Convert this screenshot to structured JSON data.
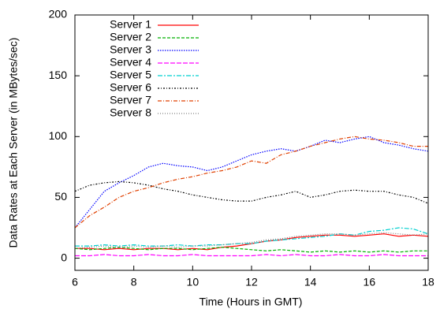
{
  "chart_data": {
    "type": "line",
    "x_label": "Time (Hours in GMT)",
    "y_label": "Data Rates at Each Server (in MBytes/sec)",
    "xlim": [
      6,
      18
    ],
    "xticks": [
      6,
      8,
      10,
      12,
      14,
      16,
      18
    ],
    "ylim": [
      -10,
      200
    ],
    "yticks": [
      0,
      50,
      100,
      150,
      200
    ],
    "grid": false,
    "legend": "top-left",
    "x": [
      6,
      6.5,
      7,
      7.5,
      8,
      8.5,
      9,
      9.5,
      10,
      10.5,
      11,
      11.5,
      12,
      12.5,
      13,
      13.5,
      14,
      14.5,
      15,
      15.5,
      16,
      16.5,
      17,
      17.5,
      18
    ],
    "series": [
      {
        "name": "Server 1",
        "color": "#ff0000",
        "dash": "none",
        "values": [
          8,
          8,
          7,
          8,
          7,
          8,
          8,
          7,
          8,
          7,
          9,
          10,
          12,
          14,
          15,
          17,
          18,
          19,
          19,
          18,
          19,
          20,
          18,
          19,
          18
        ]
      },
      {
        "name": "Server 2",
        "color": "#00b000",
        "dash": "4 2",
        "values": [
          8,
          7,
          8,
          9,
          8,
          7,
          8,
          8,
          7,
          8,
          9,
          8,
          7,
          6,
          7,
          6,
          5,
          6,
          5,
          6,
          5,
          6,
          5,
          6,
          6
        ]
      },
      {
        "name": "Server 3",
        "color": "#0000ff",
        "dash": "1.5 1.5",
        "values": [
          25,
          40,
          55,
          62,
          68,
          75,
          78,
          76,
          75,
          72,
          75,
          80,
          85,
          88,
          90,
          88,
          92,
          97,
          95,
          98,
          100,
          95,
          93,
          90,
          88
        ]
      },
      {
        "name": "Server 4",
        "color": "#ff00ff",
        "dash": "6 2",
        "values": [
          2,
          2,
          3,
          2,
          2,
          3,
          2,
          2,
          3,
          2,
          2,
          2,
          2,
          3,
          2,
          3,
          2,
          2,
          3,
          2,
          2,
          3,
          2,
          2,
          2
        ]
      },
      {
        "name": "Server 5",
        "color": "#00d0d0",
        "dash": "6 2 2 2",
        "values": [
          10,
          10,
          11,
          10,
          11,
          10,
          10,
          11,
          10,
          11,
          11,
          12,
          12,
          14,
          15,
          16,
          17,
          18,
          20,
          19,
          22,
          23,
          25,
          24,
          20
        ]
      },
      {
        "name": "Server 6",
        "color": "#000000",
        "dash": "2 2 1 2",
        "values": [
          55,
          60,
          62,
          63,
          62,
          60,
          57,
          55,
          52,
          50,
          48,
          47,
          47,
          50,
          52,
          55,
          50,
          52,
          55,
          56,
          55,
          55,
          52,
          50,
          45
        ]
      },
      {
        "name": "Server 7",
        "color": "#e04000",
        "dash": "5 2 1 2",
        "values": [
          25,
          35,
          42,
          50,
          55,
          58,
          62,
          65,
          67,
          70,
          72,
          75,
          80,
          78,
          85,
          88,
          92,
          95,
          98,
          100,
          98,
          97,
          95,
          92,
          92
        ]
      },
      {
        "name": "Server 8",
        "color": "#808080",
        "dash": "1 2",
        "values": [
          8,
          9,
          10,
          9,
          10,
          9,
          10,
          9,
          10,
          10,
          11,
          12,
          13,
          15,
          16,
          18,
          19,
          20,
          20,
          19,
          20,
          21,
          20,
          19,
          20
        ]
      }
    ]
  }
}
